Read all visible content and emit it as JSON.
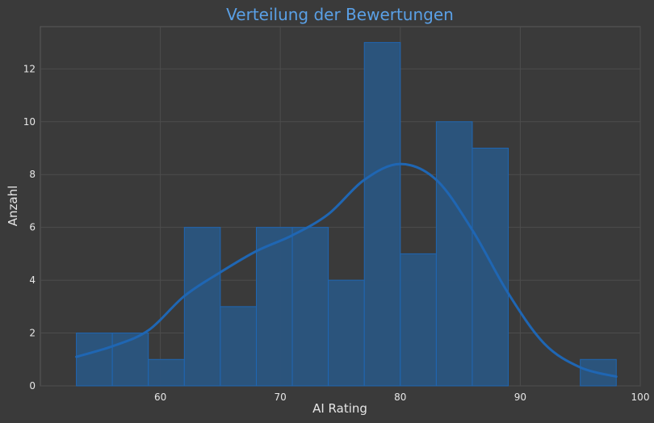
{
  "chart_data": {
    "type": "bar",
    "title": "Verteilung der Bewertungen",
    "xlabel": "AI Rating",
    "ylabel": "Anzahl",
    "xlim": [
      50,
      100
    ],
    "ylim": [
      0,
      13.6
    ],
    "xticks": [
      60,
      70,
      80,
      90,
      100
    ],
    "yticks": [
      0,
      2,
      4,
      6,
      8,
      10,
      12
    ],
    "grid": true,
    "bar_color": "#1f66b3",
    "background": "#3a3a3a",
    "title_color": "#5aa0e6",
    "bins": [
      {
        "x0": 53,
        "x1": 56,
        "count": 2
      },
      {
        "x0": 56,
        "x1": 59,
        "count": 2
      },
      {
        "x0": 59,
        "x1": 62,
        "count": 1
      },
      {
        "x0": 62,
        "x1": 65,
        "count": 6
      },
      {
        "x0": 65,
        "x1": 68,
        "count": 3
      },
      {
        "x0": 68,
        "x1": 71,
        "count": 6
      },
      {
        "x0": 71,
        "x1": 74,
        "count": 6
      },
      {
        "x0": 74,
        "x1": 77,
        "count": 4
      },
      {
        "x0": 77,
        "x1": 80,
        "count": 13
      },
      {
        "x0": 80,
        "x1": 83,
        "count": 5
      },
      {
        "x0": 83,
        "x1": 86,
        "count": 10
      },
      {
        "x0": 86,
        "x1": 89,
        "count": 9
      },
      {
        "x0": 95,
        "x1": 98,
        "count": 1
      }
    ],
    "kde": {
      "x": [
        53,
        56,
        59,
        62,
        65,
        68,
        71,
        74,
        77,
        80,
        83,
        86,
        89,
        92,
        95,
        98
      ],
      "y": [
        1.1,
        1.5,
        2.1,
        3.4,
        4.3,
        5.1,
        5.7,
        6.5,
        7.8,
        8.4,
        7.8,
        5.9,
        3.5,
        1.6,
        0.7,
        0.35
      ]
    }
  }
}
